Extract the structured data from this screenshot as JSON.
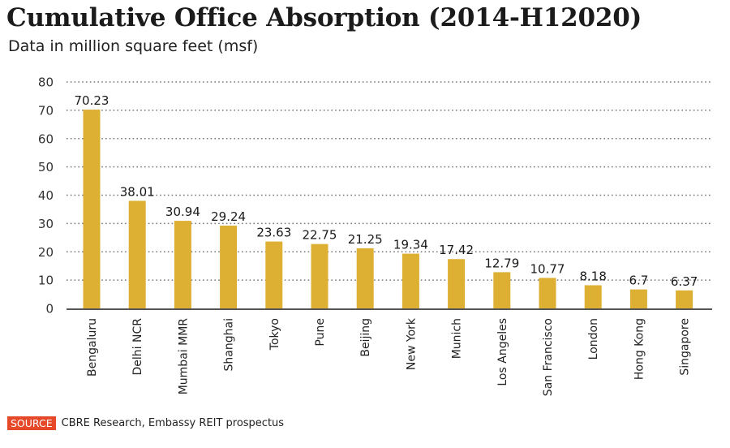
{
  "header": {
    "title": "Cumulative Office Absorption (2014-H12020)",
    "subtitle": "Data in million square feet (msf)"
  },
  "footer": {
    "source_badge": "SOURCE",
    "source_text": "CBRE Research, Embassy REIT prospectus"
  },
  "colors": {
    "bar": "#DDB033",
    "axis": "#555555",
    "grid": "#777777",
    "source_badge": "#E5492A"
  },
  "chart_data": {
    "type": "bar",
    "title": "Cumulative Office Absorption (2014-H12020)",
    "subtitle": "Data in million square feet (msf)",
    "xlabel": "",
    "ylabel": "",
    "categories": [
      "Bengaluru",
      "Delhi NCR",
      "Mumbai MMR",
      "Shanghai",
      "Tokyo",
      "Pune",
      "Beijing",
      "New York",
      "Munich",
      "Los Angeles",
      "San Francisco",
      "London",
      "Hong Kong",
      "Singapore"
    ],
    "values": [
      70.23,
      38.01,
      30.94,
      29.24,
      23.63,
      22.75,
      21.25,
      19.34,
      17.42,
      12.79,
      10.77,
      8.18,
      6.7,
      6.37
    ],
    "value_labels": [
      "70.23",
      "38.01",
      "30.94",
      "29.24",
      "23.63",
      "22.75",
      "21.25",
      "19.34",
      "17.42",
      "12.79",
      "10.77",
      "8.18",
      "6.7",
      "6.37"
    ],
    "ylim": [
      0,
      80
    ],
    "yticks": [
      0,
      10,
      20,
      30,
      40,
      50,
      60,
      70,
      80
    ],
    "grid": true,
    "grid_style": "dotted horizontal",
    "legend": "none",
    "source": "CBRE Research, Embassy REIT prospectus"
  }
}
